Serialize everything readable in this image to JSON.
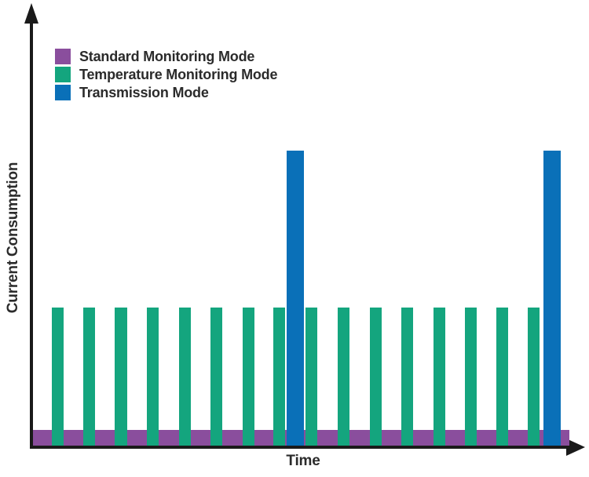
{
  "chart_data": {
    "type": "bar",
    "title": "",
    "xlabel": "Time",
    "ylabel": "Current Consumption",
    "x_ticks": [],
    "y_ticks": [],
    "grid": false,
    "legend_position": "top-left-inside",
    "axis_color": "#1a1a1a",
    "background_color": "#ffffff",
    "description": "Pulse train of current consumption over time: a continuous low purple baseline (standard monitoring), 16 evenly spaced medium green pulses (temperature monitoring), and 2 tall blue pulses (transmission) occurring after every 8th temperature pulse.",
    "series": [
      {
        "name": "Standard Monitoring Mode",
        "color": "#8A4E9D",
        "kind": "baseline",
        "height_frac": 0.036,
        "start_frac": 0.0,
        "end_frac": 1.0
      },
      {
        "name": "Temperature Monitoring Mode",
        "color": "#14A57E",
        "kind": "pulse",
        "height_frac": 0.314,
        "width_frac": 0.022,
        "centers_frac": [
          0.0461,
          0.1054,
          0.164,
          0.2233,
          0.2826,
          0.3419,
          0.4012,
          0.4597,
          0.519,
          0.5791,
          0.6384,
          0.6977,
          0.757,
          0.8163,
          0.8748,
          0.9341
        ]
      },
      {
        "name": "Transmission Mode",
        "color": "#0A70B8",
        "kind": "pulse",
        "height_frac": 0.671,
        "width_frac": 0.0322,
        "centers_frac": [
          0.4897,
          0.9678
        ]
      }
    ]
  }
}
